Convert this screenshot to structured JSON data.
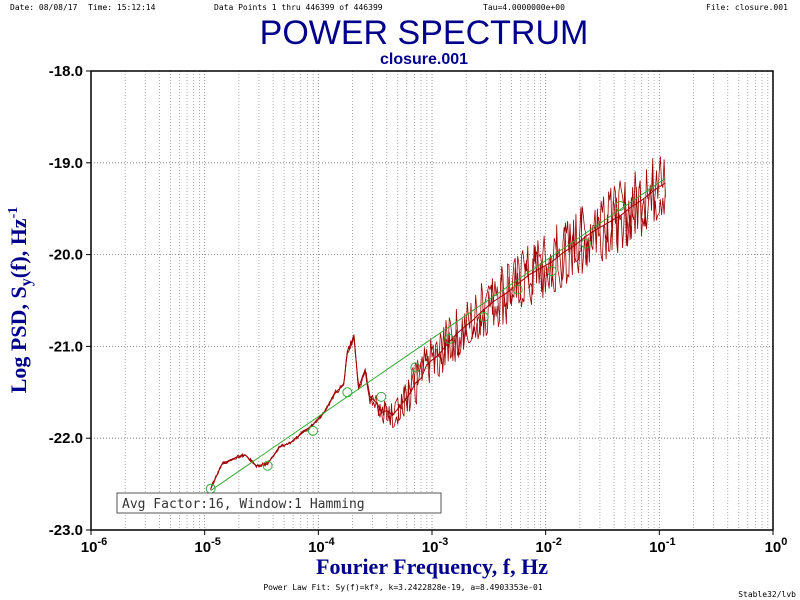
{
  "header": {
    "date": "Date: 08/08/17",
    "time": "Time: 15:12:14",
    "points": "Data Points 1 thru 446399 of 446399",
    "tau": "Tau=4.0000000e+00",
    "file": "File: closure.001"
  },
  "footer": {
    "fit": "Power Law Fit: Sy(f)=kfª, k=3.2422828e-19, a=8.4903353e-01",
    "credit": "Stable32/lvb"
  },
  "chart_data": {
    "type": "line",
    "title": "POWER SPECTRUM",
    "subtitle": "closure.001",
    "xlabel": "Fourier Frequency, f, Hz",
    "ylabel": "Log PSD, S",
    "ylabel_parts": {
      "main": "Log PSD, S",
      "sub": "y",
      "mid": "(f), Hz",
      "sup": "-1"
    },
    "x_scale": "log",
    "xlim": [
      1e-06,
      1
    ],
    "ylim": [
      -23.0,
      -18.0
    ],
    "x_ticks": [
      {
        "base": "10",
        "exp": "-6",
        "value": 1e-06
      },
      {
        "base": "10",
        "exp": "-5",
        "value": 1e-05
      },
      {
        "base": "10",
        "exp": "-4",
        "value": 0.0001
      },
      {
        "base": "10",
        "exp": "-3",
        "value": 0.001
      },
      {
        "base": "10",
        "exp": "-2",
        "value": 0.01
      },
      {
        "base": "10",
        "exp": "-1",
        "value": 0.1
      },
      {
        "base": "10",
        "exp": "0",
        "value": 1
      }
    ],
    "y_ticks": [
      "-18.0",
      "-19.0",
      "-20.0",
      "-21.0",
      "-22.0",
      "-23.0"
    ],
    "grid": true,
    "annotation": "Avg Factor:16, Window:1 Hamming",
    "colors": {
      "psd": "#a00000",
      "fit": "#33aa33",
      "axis_text": "#00008b"
    },
    "series": [
      {
        "kind": "psd",
        "x": [
          1.13e-05,
          1.42e-05,
          1.8e-05,
          2.26e-05,
          2.85e-05,
          3.58e-05,
          4.51e-05,
          5.67e-05,
          7.14e-05,
          8.98e-05,
          0.000113,
          0.000142,
          0.000167,
          0.00018,
          0.000206,
          0.000226,
          0.000258,
          0.000285,
          0.00033,
          0.000358,
          0.0004,
          0.000451,
          0.0005,
          0.000567,
          0.00065,
          0.000714,
          0.0008,
          0.000898,
          0.001,
          0.00113,
          0.00127,
          0.00142,
          0.0016,
          0.0018,
          0.00226,
          0.00285,
          0.00358,
          0.00451,
          0.00567,
          0.00714,
          0.00898,
          0.0113,
          0.0142,
          0.018,
          0.0226,
          0.0285,
          0.0358,
          0.0451,
          0.0567,
          0.0714,
          0.0898,
          0.113
        ],
        "y": [
          -22.55,
          -22.28,
          -22.22,
          -22.18,
          -22.3,
          -22.28,
          -22.1,
          -22.05,
          -21.95,
          -21.85,
          -21.72,
          -21.5,
          -21.42,
          -21.05,
          -20.9,
          -21.45,
          -21.25,
          -21.55,
          -21.62,
          -21.72,
          -21.7,
          -21.75,
          -21.68,
          -21.6,
          -21.5,
          -21.4,
          -21.35,
          -21.2,
          -21.15,
          -21.1,
          -21.02,
          -20.95,
          -20.88,
          -20.82,
          -20.72,
          -20.6,
          -20.5,
          -20.42,
          -20.32,
          -20.22,
          -20.15,
          -20.08,
          -19.98,
          -19.9,
          -19.8,
          -19.72,
          -19.65,
          -19.58,
          -19.48,
          -19.4,
          -19.3,
          -19.22
        ],
        "noise_band": [
          0.02,
          0.02,
          0.02,
          0.02,
          0.02,
          0.02,
          0.02,
          0.02,
          0.02,
          0.02,
          0.02,
          0.03,
          0.03,
          0.04,
          0.04,
          0.05,
          0.06,
          0.08,
          0.1,
          0.12,
          0.14,
          0.16,
          0.18,
          0.2,
          0.22,
          0.24,
          0.25,
          0.26,
          0.27,
          0.28,
          0.28,
          0.29,
          0.3,
          0.3,
          0.31,
          0.32,
          0.33,
          0.34,
          0.34,
          0.35,
          0.36,
          0.36,
          0.37,
          0.37,
          0.38,
          0.38,
          0.39,
          0.39,
          0.4,
          0.4,
          0.41,
          0.42
        ]
      },
      {
        "kind": "fit",
        "x": [
          1.13e-05,
          0.113
        ],
        "y": [
          -22.57,
          -19.17
        ]
      },
      {
        "kind": "points",
        "x": [
          1.13e-05,
          3.58e-05,
          8.98e-05,
          0.00018,
          0.000358,
          0.000714,
          0.00142,
          0.00285,
          0.00567,
          0.0113,
          0.0226,
          0.0451
        ],
        "y": [
          -22.55,
          -22.3,
          -21.92,
          -21.5,
          -21.55,
          -21.23,
          -20.92,
          -20.68,
          -20.38,
          -20.18,
          -19.88,
          -19.47
        ]
      }
    ]
  }
}
